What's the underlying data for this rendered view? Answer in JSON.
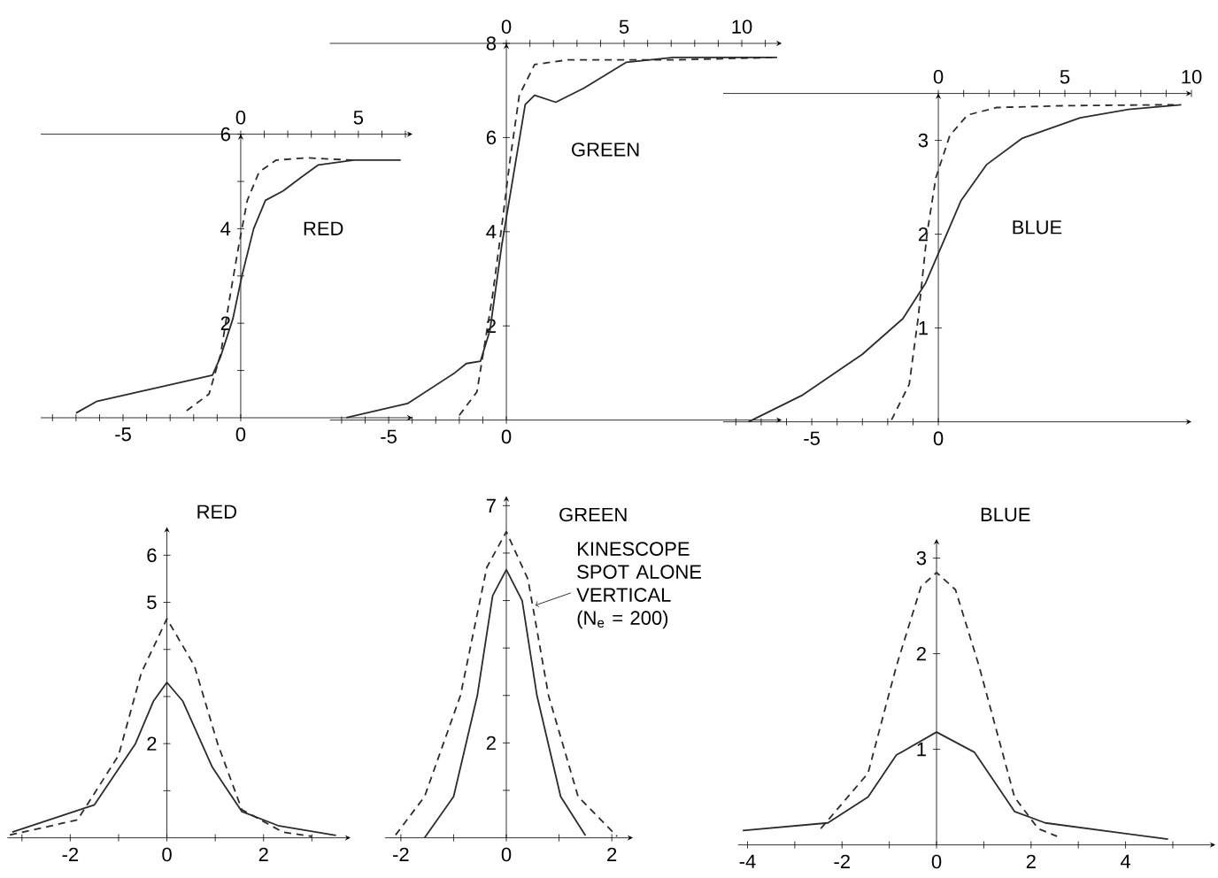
{
  "chart_data": [
    {
      "type": "line",
      "title": "RED",
      "xlim": [
        -8.5,
        7.3
      ],
      "x2lim": [
        -8.5,
        7.3
      ],
      "ylim": [
        0,
        6
      ],
      "xticks": [
        {
          "value": -8,
          "label": null
        },
        {
          "value": -7,
          "label": null
        },
        {
          "value": -6,
          "label": null
        },
        -5,
        {
          "value": -4,
          "label": null
        },
        {
          "value": -3,
          "label": null
        },
        {
          "value": -2,
          "label": null
        },
        {
          "value": -1,
          "label": null
        },
        0
      ],
      "x2ticks": [
        0,
        {
          "value": 1,
          "label": null
        },
        {
          "value": 2,
          "label": null
        },
        {
          "value": 3,
          "label": null
        },
        {
          "value": 4,
          "label": null
        },
        5,
        {
          "value": 6,
          "label": null
        },
        {
          "value": 7,
          "label": null
        }
      ],
      "yticks": [
        {
          "value": 1,
          "label": null
        },
        2,
        {
          "value": 3,
          "label": null
        },
        4,
        {
          "value": 5,
          "label": null
        },
        6
      ],
      "series": [
        {
          "color": "#2b2b2b",
          "line_style": "solid",
          "x": [
            -7,
            -6.1,
            -1.2,
            -0.85,
            -0.33,
            0.05,
            0.55,
            1.05,
            1.8,
            2.6,
            3.3,
            4.8,
            6.8
          ],
          "values": [
            0.1,
            0.35,
            0.9,
            1.3,
            2.1,
            3.0,
            4.0,
            4.6,
            4.8,
            5.1,
            5.35,
            5.45,
            5.45
          ]
        },
        {
          "color": "#2b2b2b",
          "line_style": "dashed",
          "x": [
            -2.3,
            -1.35,
            -0.85,
            -0.48,
            -0.1,
            0.28,
            0.78,
            1.5,
            2.8,
            4.8
          ],
          "values": [
            0.15,
            0.5,
            1.35,
            2.5,
            3.6,
            4.6,
            5.2,
            5.45,
            5.5,
            5.45
          ]
        }
      ]
    },
    {
      "type": "line",
      "title": "GREEN",
      "xlim": [
        -7.5,
        11.7
      ],
      "x2lim": [
        -7.5,
        11.7
      ],
      "ylim": [
        0,
        8
      ],
      "xticks": [
        {
          "value": -7,
          "label": null
        },
        {
          "value": -6,
          "label": null
        },
        -5,
        {
          "value": -4,
          "label": null
        },
        {
          "value": -3,
          "label": null
        },
        {
          "value": -2,
          "label": null
        },
        {
          "value": -1,
          "label": null
        },
        0
      ],
      "x2ticks": [
        0,
        {
          "value": 1,
          "label": null
        },
        {
          "value": 2,
          "label": null
        },
        {
          "value": 3,
          "label": null
        },
        {
          "value": 4,
          "label": null
        },
        5,
        {
          "value": 6,
          "label": null
        },
        {
          "value": 7,
          "label": null
        },
        {
          "value": 8,
          "label": null
        },
        {
          "value": 9,
          "label": null
        },
        10,
        {
          "value": 11,
          "label": null
        }
      ],
      "yticks": [
        2,
        4,
        6,
        8
      ],
      "series": [
        {
          "color": "#2b2b2b",
          "line_style": "solid",
          "x": [
            -6.8,
            -4.2,
            -2.2,
            -1.7,
            -1.1,
            -0.7,
            -0.2,
            0.3,
            0.8,
            1.2,
            2.1,
            3.3,
            5.1,
            7.1,
            11.5
          ],
          "values": [
            0.05,
            0.35,
            1.0,
            1.2,
            1.25,
            1.9,
            3.7,
            5.2,
            6.7,
            6.9,
            6.75,
            7.05,
            7.6,
            7.7,
            7.7
          ]
        },
        {
          "color": "#2b2b2b",
          "line_style": "dashed",
          "x": [
            -2.0,
            -1.25,
            -0.6,
            -0.2,
            0.15,
            0.55,
            1.2,
            2.6,
            7.1,
            11.3
          ],
          "values": [
            0.1,
            0.6,
            2.6,
            4.1,
            5.5,
            6.9,
            7.55,
            7.65,
            7.65,
            7.7
          ]
        }
      ]
    },
    {
      "type": "line",
      "title": "BLUE",
      "xlim": [
        -8.5,
        10
      ],
      "x2lim": [
        -8.5,
        10
      ],
      "ylim": [
        0,
        3.5
      ],
      "xticks": [
        {
          "value": -8,
          "label": null
        },
        {
          "value": -7,
          "label": null
        },
        {
          "value": -6,
          "label": null
        },
        -5,
        {
          "value": -4,
          "label": null
        },
        {
          "value": -3,
          "label": null
        },
        {
          "value": -2,
          "label": null
        },
        {
          "value": -1,
          "label": null
        },
        0
      ],
      "x2ticks": [
        0,
        {
          "value": 1,
          "label": null
        },
        {
          "value": 2,
          "label": null
        },
        {
          "value": 3,
          "label": null
        },
        {
          "value": 4,
          "label": null
        },
        5,
        {
          "value": 6,
          "label": null
        },
        {
          "value": 7,
          "label": null
        },
        {
          "value": 8,
          "label": null
        },
        {
          "value": 9,
          "label": null
        },
        10
      ],
      "yticks": [
        1,
        2,
        3
      ],
      "series": [
        {
          "color": "#2b2b2b",
          "line_style": "solid",
          "x": [
            -7.5,
            -5.4,
            -3.0,
            -1.4,
            -0.5,
            0.2,
            0.9,
            1.9,
            3.3,
            5.6,
            7.5,
            9.6
          ],
          "values": [
            0.0,
            0.28,
            0.72,
            1.1,
            1.48,
            1.92,
            2.36,
            2.74,
            3.02,
            3.24,
            3.33,
            3.38
          ]
        },
        {
          "color": "#2b2b2b",
          "line_style": "dashed",
          "x": [
            -1.85,
            -1.15,
            -0.8,
            -0.45,
            -0.1,
            0.45,
            1.15,
            2.3,
            5.1,
            9.3
          ],
          "values": [
            0.02,
            0.4,
            1.1,
            2.0,
            2.6,
            3.05,
            3.27,
            3.35,
            3.37,
            3.38
          ]
        }
      ]
    },
    {
      "type": "line",
      "title": "RED",
      "xlim": [
        -3.3,
        3.8
      ],
      "ylim": [
        0,
        6.6
      ],
      "xticks": [
        {
          "value": -3,
          "label": null
        },
        -2,
        {
          "value": -1,
          "label": null
        },
        0,
        {
          "value": 1,
          "label": null
        },
        2,
        {
          "value": 3,
          "label": null
        }
      ],
      "yticks": [
        {
          "value": 1,
          "label": null
        },
        2,
        {
          "value": 3,
          "label": null
        },
        {
          "value": 4,
          "label": null
        },
        5,
        6
      ],
      "series": [
        {
          "color": "#2b2b2b",
          "line_style": "solid",
          "x": [
            -3.2,
            -1.5,
            -0.65,
            -0.28,
            0,
            0.33,
            0.94,
            1.55,
            2.3,
            3.5
          ],
          "values": [
            0.12,
            0.7,
            2.0,
            2.9,
            3.3,
            2.9,
            1.5,
            0.56,
            0.26,
            0.05
          ]
        },
        {
          "color": "#2b2b2b",
          "line_style": "dashed",
          "x": [
            -3.25,
            -1.85,
            -1.0,
            -0.53,
            0,
            0.57,
            1.05,
            1.55,
            2.4,
            3.0
          ],
          "values": [
            0.06,
            0.38,
            1.75,
            3.5,
            4.65,
            3.65,
            2.0,
            0.6,
            0.12,
            0.03
          ]
        }
      ]
    },
    {
      "type": "line",
      "title": "GREEN",
      "xlim": [
        -2.3,
        2.4
      ],
      "ylim": [
        0,
        7.2
      ],
      "xticks": [
        -2,
        {
          "value": -1,
          "label": null
        },
        0,
        {
          "value": 1,
          "label": null
        },
        2
      ],
      "yticks": [
        {
          "value": 1,
          "label": null
        },
        2,
        {
          "value": 3,
          "label": null
        },
        {
          "value": 4,
          "label": null
        },
        {
          "value": 5,
          "label": null
        },
        {
          "value": 6,
          "label": null
        },
        7
      ],
      "annotations": [
        {
          "text": "KINESCOPE SPOT ALONE VERTICAL (N$_{e}$ = 200)",
          "x": 0.55,
          "y": 4.9
        }
      ],
      "series": [
        {
          "color": "#2b2b2b",
          "line_style": "solid",
          "x": [
            -1.55,
            -1.0,
            -0.55,
            -0.26,
            0,
            0.3,
            0.58,
            1.03,
            1.5
          ],
          "values": [
            0.0,
            0.87,
            3.0,
            5.1,
            5.65,
            5.0,
            3.0,
            0.87,
            0.05
          ]
        },
        {
          "color": "#2b2b2b",
          "line_style": "dashed",
          "x": [
            -2.1,
            -1.55,
            -0.87,
            -0.37,
            0,
            0.41,
            0.8,
            1.36,
            2.1
          ],
          "values": [
            0.06,
            0.87,
            3.0,
            5.7,
            6.45,
            5.45,
            3.0,
            0.87,
            0.03
          ]
        }
      ]
    },
    {
      "type": "line",
      "title": "BLUE",
      "xlim": [
        -4.2,
        5.9
      ],
      "ylim": [
        0,
        3.2
      ],
      "xticks": [
        -4,
        {
          "value": -3,
          "label": null
        },
        -2,
        {
          "value": -1,
          "label": null
        },
        0,
        {
          "value": 1,
          "label": null
        },
        2,
        {
          "value": 3,
          "label": null
        },
        4,
        {
          "value": 5,
          "label": null
        }
      ],
      "yticks": [
        1,
        2,
        3
      ],
      "series": [
        {
          "color": "#2b2b2b",
          "line_style": "solid",
          "x": [
            -4.1,
            -2.3,
            -1.45,
            -0.85,
            0,
            0.8,
            1.65,
            2.3,
            4.9
          ],
          "values": [
            0.15,
            0.23,
            0.5,
            0.94,
            1.18,
            0.97,
            0.35,
            0.23,
            0.06
          ]
        },
        {
          "color": "#2b2b2b",
          "line_style": "dashed",
          "x": [
            -2.45,
            -1.45,
            -0.85,
            -0.33,
            0,
            0.4,
            0.9,
            1.65,
            2.15,
            2.55
          ],
          "values": [
            0.17,
            0.75,
            1.87,
            2.7,
            2.85,
            2.67,
            1.87,
            0.5,
            0.17,
            0.09
          ]
        }
      ]
    }
  ]
}
